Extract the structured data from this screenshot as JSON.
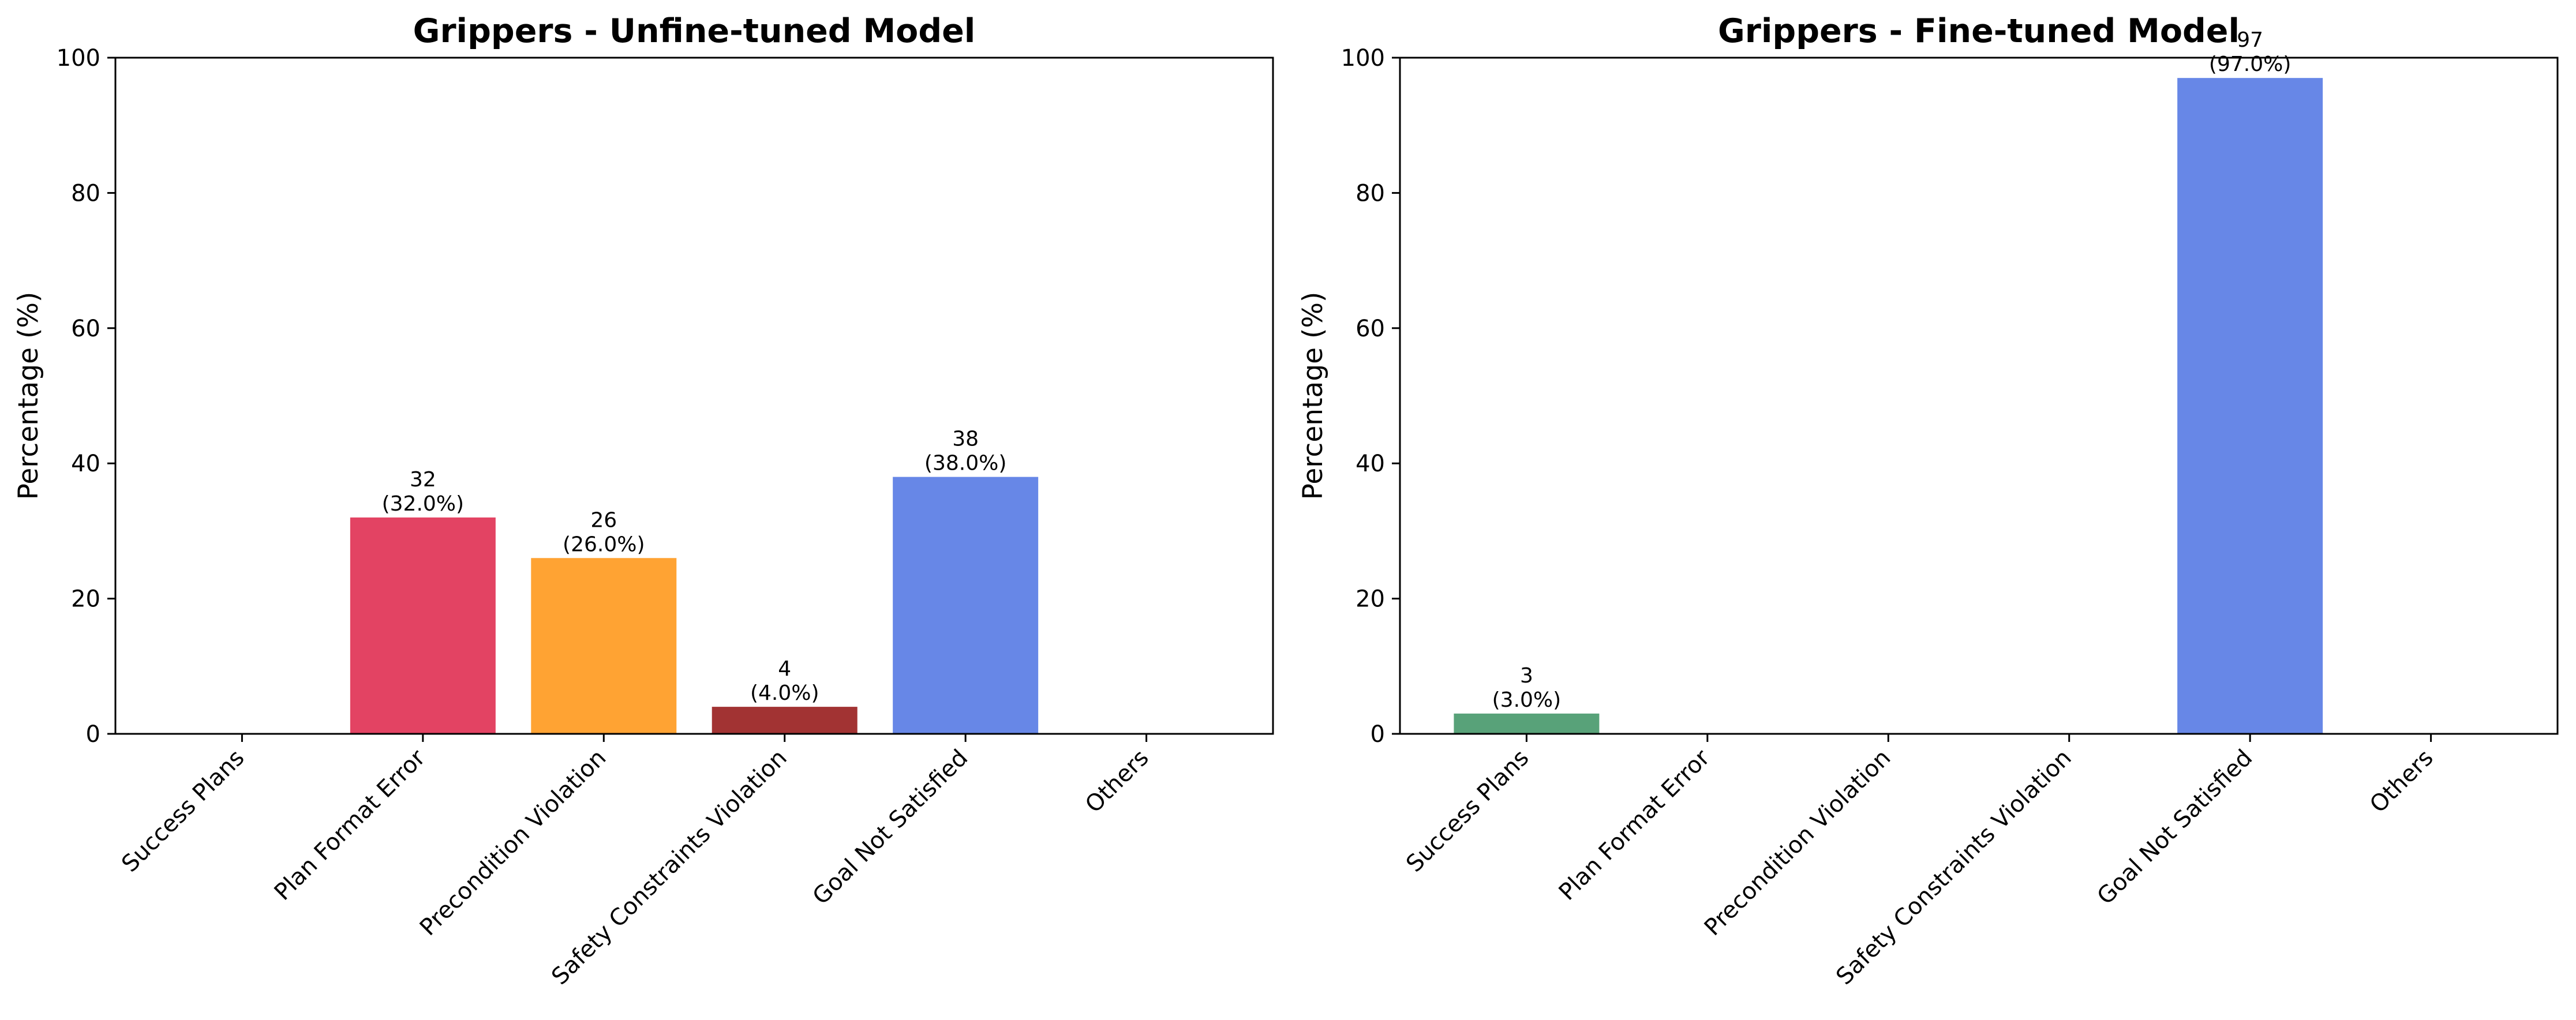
{
  "chart_data": [
    {
      "type": "bar",
      "title": "Grippers - Unfine-tuned Model",
      "ylabel": "Percentage (%)",
      "xlabel": "",
      "ylim": [
        0,
        100
      ],
      "yticks": [
        0,
        20,
        40,
        60,
        80,
        100
      ],
      "grid": false,
      "categories": [
        "Success Plans",
        "Plan Format Error",
        "Precondition Violation",
        "Safety Constraints Violation",
        "Goal Not Satisfied",
        "Others"
      ],
      "values": [
        0,
        32,
        26,
        4,
        38,
        0
      ],
      "counts": [
        0,
        32,
        26,
        4,
        38,
        0
      ],
      "data_labels": [
        [
          "",
          ""
        ],
        [
          "32",
          "(32.0%)"
        ],
        [
          "26",
          "(26.0%)"
        ],
        [
          "4",
          "(4.0%)"
        ],
        [
          "38",
          "(38.0%)"
        ],
        [
          "",
          ""
        ]
      ],
      "colors": [
        "#2e8b57",
        "#dc143c",
        "#ff8c00",
        "#8b0000",
        "#4169e1",
        "#808080"
      ]
    },
    {
      "type": "bar",
      "title": "Grippers - Fine-tuned Model",
      "ylabel": "Percentage (%)",
      "xlabel": "",
      "ylim": [
        0,
        100
      ],
      "yticks": [
        0,
        20,
        40,
        60,
        80,
        100
      ],
      "grid": false,
      "categories": [
        "Success Plans",
        "Plan Format Error",
        "Precondition Violation",
        "Safety Constraints Violation",
        "Goal Not Satisfied",
        "Others"
      ],
      "values": [
        3,
        0,
        0,
        0,
        97,
        0
      ],
      "counts": [
        3,
        0,
        0,
        0,
        97,
        0
      ],
      "data_labels": [
        [
          "3",
          "(3.0%)"
        ],
        [
          "",
          ""
        ],
        [
          "",
          ""
        ],
        [
          "",
          ""
        ],
        [
          "97",
          "(97.0%)"
        ],
        [
          "",
          ""
        ]
      ],
      "colors": [
        "#2e8b57",
        "#dc143c",
        "#ff8c00",
        "#8b0000",
        "#4169e1",
        "#808080"
      ]
    }
  ]
}
